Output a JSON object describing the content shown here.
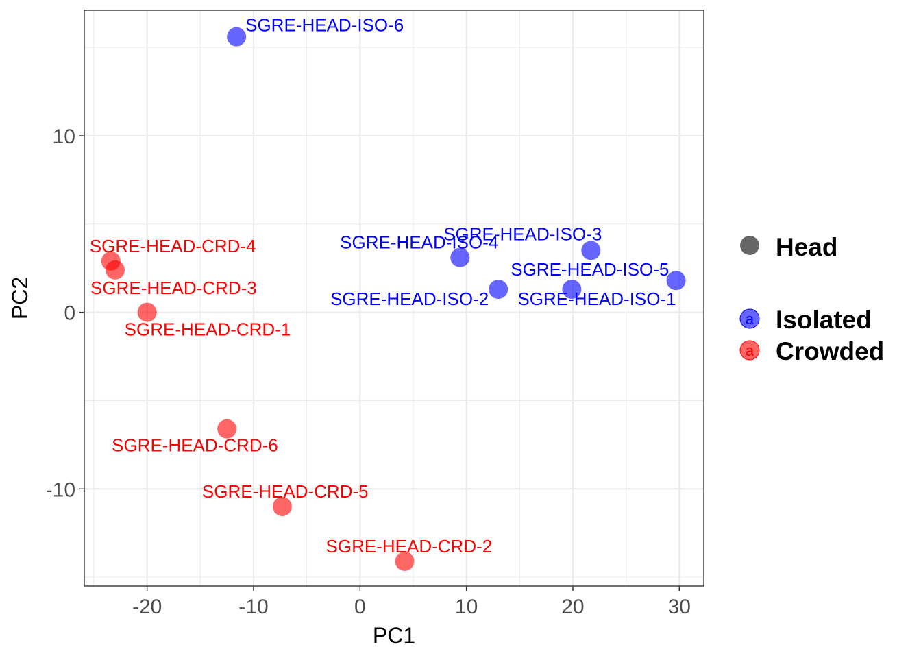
{
  "chart_data": {
    "type": "scatter",
    "title": "",
    "xlabel": "PC1",
    "ylabel": "PC2",
    "xlim": [
      -25.9,
      32.3
    ],
    "ylim": [
      -15.5,
      17.1
    ],
    "xticks": [
      -20,
      -10,
      0,
      10,
      20,
      30
    ],
    "yticks": [
      -10,
      0,
      10
    ],
    "xtick_labels": [
      "-20",
      "-10",
      "0",
      "10",
      "20",
      "30"
    ],
    "ytick_labels": [
      "-10",
      "0",
      "10"
    ],
    "grid": true,
    "legend": {
      "placement": "right",
      "shape_title": "Head",
      "shape_color": "#666666",
      "key_letter": "a",
      "entries": [
        {
          "label": "Isolated",
          "color": "#0000ff"
        },
        {
          "label": "Crowded",
          "color": "#ff0000"
        }
      ]
    },
    "series": [
      {
        "name": "Isolated",
        "color": "#0000ff",
        "points": [
          {
            "label": "SGRE-HEAD-ISO-1",
            "x": 29.7,
            "y": 1.8
          },
          {
            "label": "SGRE-HEAD-ISO-2",
            "x": 13.0,
            "y": 1.3
          },
          {
            "label": "SGRE-HEAD-ISO-3",
            "x": 21.7,
            "y": 3.5
          },
          {
            "label": "SGRE-HEAD-ISO-4",
            "x": 9.4,
            "y": 3.1
          },
          {
            "label": "SGRE-HEAD-ISO-5",
            "x": 19.9,
            "y": 1.3
          },
          {
            "label": "SGRE-HEAD-ISO-6",
            "x": -11.6,
            "y": 15.6
          }
        ]
      },
      {
        "name": "Crowded",
        "color": "#ff0000",
        "points": [
          {
            "label": "SGRE-HEAD-CRD-1",
            "x": -20.0,
            "y": 0.0
          },
          {
            "label": "SGRE-HEAD-CRD-2",
            "x": 4.2,
            "y": -14.1
          },
          {
            "label": "SGRE-HEAD-CRD-3",
            "x": -23.0,
            "y": 2.4
          },
          {
            "label": "SGRE-HEAD-CRD-4",
            "x": -23.4,
            "y": 2.9
          },
          {
            "label": "SGRE-HEAD-CRD-5",
            "x": -7.3,
            "y": -11.0
          },
          {
            "label": "SGRE-HEAD-CRD-6",
            "x": -12.5,
            "y": -6.6
          }
        ]
      }
    ]
  }
}
